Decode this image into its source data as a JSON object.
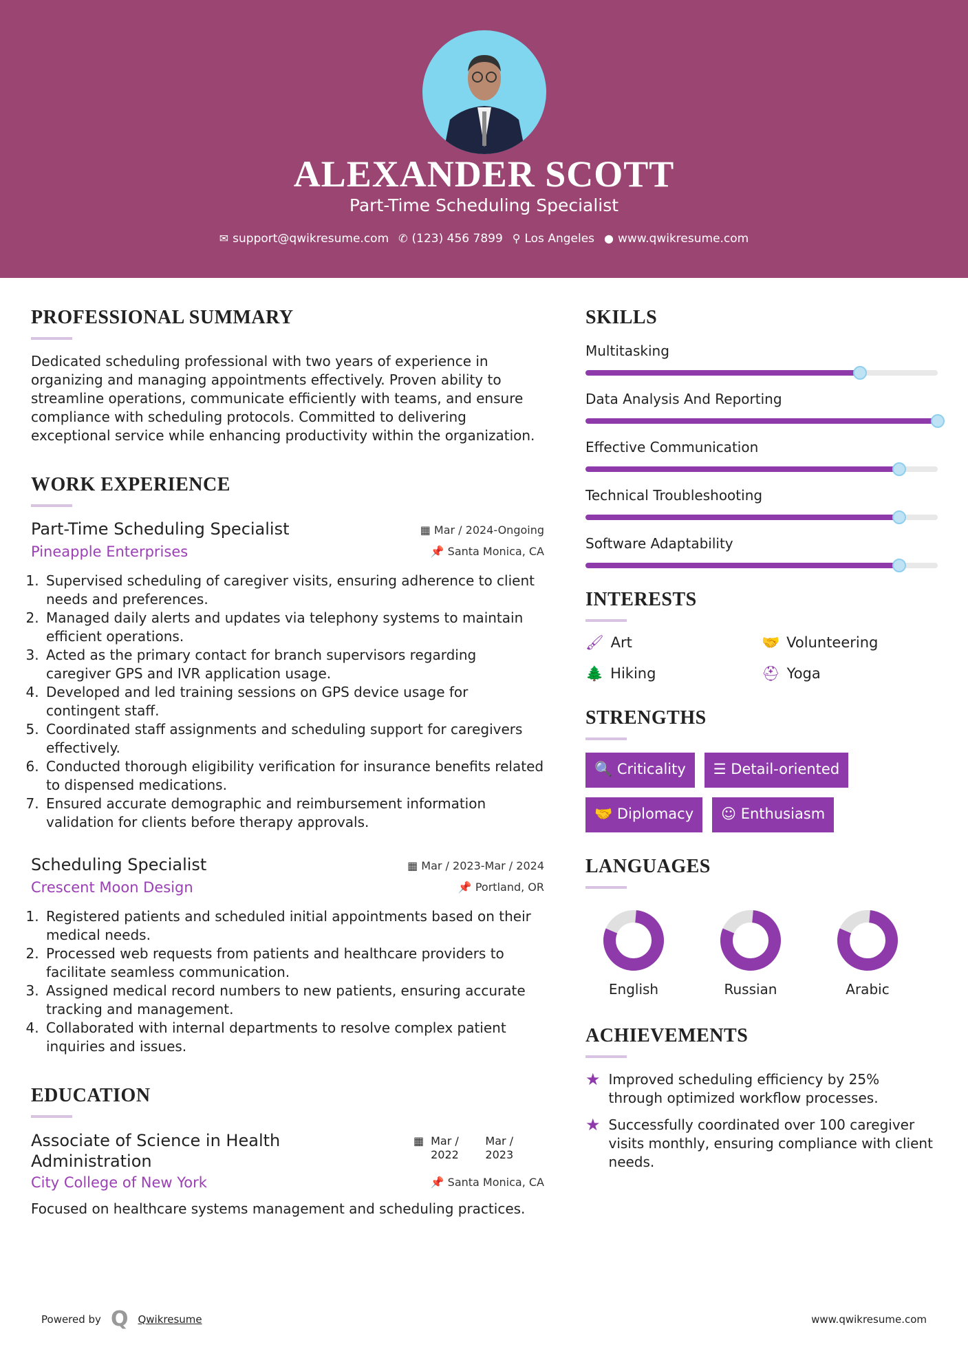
{
  "colors": {
    "header": "#9b4572",
    "accent": "#8e3aaa"
  },
  "header": {
    "name": "ALEXANDER SCOTT",
    "title": "Part-Time Scheduling Specialist",
    "contact": [
      {
        "icon": "envelope-icon",
        "text": "support@qwikresume.com"
      },
      {
        "icon": "phone-icon",
        "text": "(123) 456 7899"
      },
      {
        "icon": "map-pin-icon",
        "text": "Los Angeles"
      },
      {
        "icon": "globe-icon",
        "text": "www.qwikresume.com"
      }
    ]
  },
  "summary": {
    "heading": "PROFESSIONAL SUMMARY",
    "text": "Dedicated scheduling professional with two years of experience in organizing and managing appointments effectively. Proven ability to streamline operations, communicate efficiently with teams, and ensure compliance with scheduling protocols. Committed to delivering exceptional service while enhancing productivity within the organization."
  },
  "work": {
    "heading": "WORK EXPERIENCE",
    "jobs": [
      {
        "title": "Part-Time Scheduling Specialist",
        "date": "Mar / 2024-Ongoing",
        "company": "Pineapple Enterprises",
        "location": "Santa Monica, CA",
        "bullets": [
          "Supervised scheduling of caregiver visits, ensuring adherence to client needs and preferences.",
          "Managed daily alerts and updates via telephony systems to maintain efficient operations.",
          "Acted as the primary contact for branch supervisors regarding caregiver GPS and IVR application usage.",
          "Developed and led training sessions on GPS device usage for contingent staff.",
          "Coordinated staff assignments and scheduling support for caregivers effectively.",
          "Conducted thorough eligibility verification for insurance benefits related to dispensed medications.",
          "Ensured accurate demographic and reimbursement information validation for clients before therapy approvals."
        ]
      },
      {
        "title": "Scheduling Specialist",
        "date": "Mar / 2023-Mar / 2024",
        "company": "Crescent Moon Design",
        "location": "Portland, OR",
        "bullets": [
          "Registered patients and scheduled initial appointments based on their medical needs.",
          "Processed web requests from patients and healthcare providers to facilitate seamless communication.",
          "Assigned medical record numbers to new patients, ensuring accurate tracking and management.",
          "Collaborated with internal departments to resolve complex patient inquiries and issues."
        ]
      }
    ]
  },
  "education": {
    "heading": "EDUCATION",
    "degree": "Associate of Science in Health Administration",
    "start": "Mar / 2022",
    "end": "Mar / 2023",
    "school": "City College of New York",
    "location": "Santa Monica, CA",
    "text": "Focused on healthcare systems management and scheduling practices."
  },
  "skills": {
    "heading": "SKILLS",
    "items": [
      {
        "name": "Multitasking",
        "level": 78
      },
      {
        "name": "Data Analysis And Reporting",
        "level": 100
      },
      {
        "name": "Effective Communication",
        "level": 89
      },
      {
        "name": "Technical Troubleshooting",
        "level": 89
      },
      {
        "name": "Software Adaptability",
        "level": 89
      }
    ]
  },
  "interests": {
    "heading": "INTERESTS",
    "items": [
      {
        "icon": "paintbrush-icon",
        "label": "Art"
      },
      {
        "icon": "handshake-icon",
        "label": "Volunteering"
      },
      {
        "icon": "tree-icon",
        "label": "Hiking"
      },
      {
        "icon": "lifering-icon",
        "label": "Yoga"
      }
    ]
  },
  "strengths": {
    "heading": "STRENGTHS",
    "items": [
      {
        "icon": "search-icon",
        "label": "Criticality"
      },
      {
        "icon": "list-icon",
        "label": "Detail-oriented"
      },
      {
        "icon": "handshake-icon",
        "label": "Diplomacy"
      },
      {
        "icon": "smile-icon",
        "label": "Enthusiasm"
      }
    ]
  },
  "languages": {
    "heading": "LANGUAGES",
    "items": [
      {
        "name": "English",
        "level": 80
      },
      {
        "name": "Russian",
        "level": 80
      },
      {
        "name": "Arabic",
        "level": 80
      }
    ]
  },
  "achievements": {
    "heading": "ACHIEVEMENTS",
    "items": [
      "Improved scheduling efficiency by 25% through optimized workflow processes.",
      "Successfully coordinated over 100 caregiver visits monthly, ensuring compliance with client needs."
    ]
  },
  "footer": {
    "powered": "Powered by",
    "brand": "Qwikresume",
    "site": "www.qwikresume.com"
  }
}
